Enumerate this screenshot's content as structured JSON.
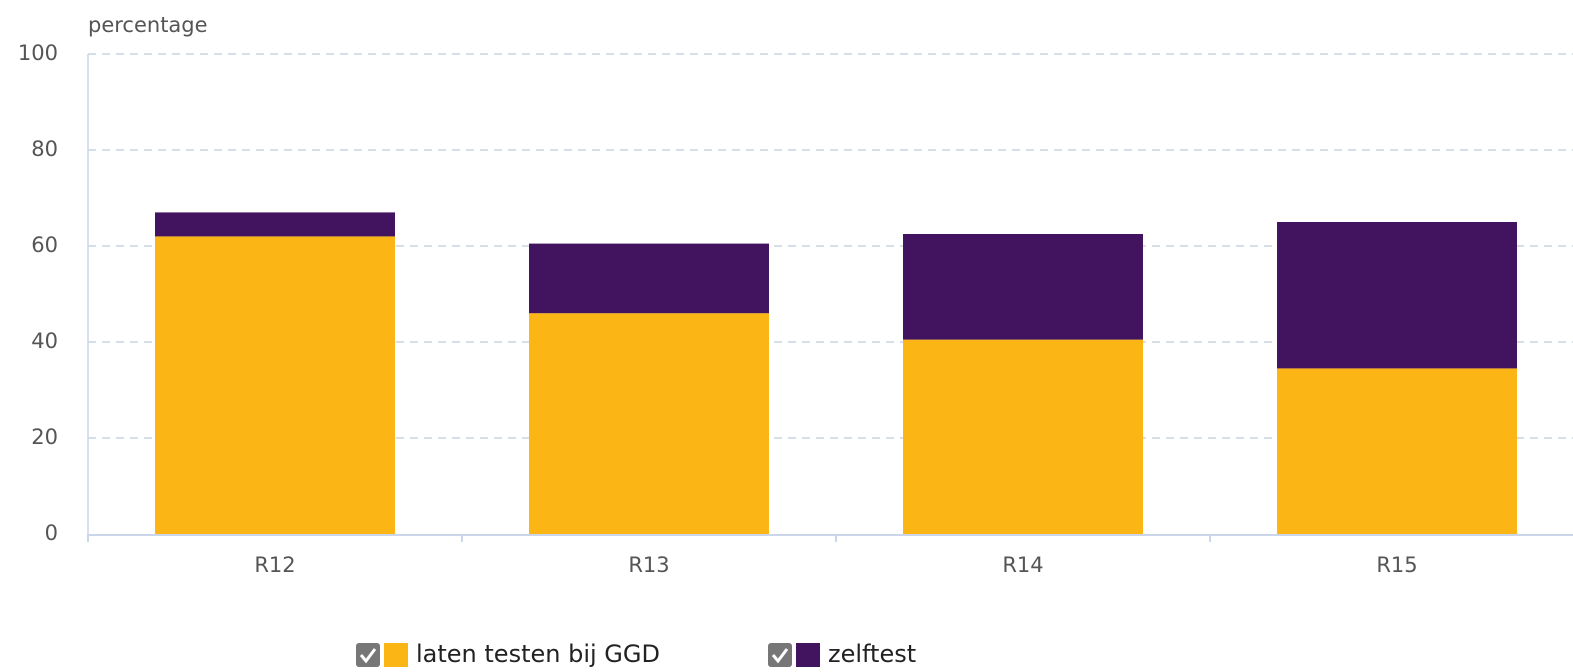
{
  "chart_data": {
    "type": "bar",
    "stacked": true,
    "y_label": "percentage",
    "categories": [
      "R12",
      "R13",
      "R14",
      "R15"
    ],
    "series": [
      {
        "name": "laten testen bij GGD",
        "color": "#fbb515",
        "values": [
          62,
          46,
          40.5,
          34.5
        ]
      },
      {
        "name": "zelftest",
        "color": "#42145f",
        "values": [
          5,
          14.5,
          22,
          30.5
        ]
      }
    ],
    "ylim": [
      0,
      100
    ],
    "yticks": [
      0,
      20,
      40,
      60,
      80,
      100
    ],
    "grid": true
  }
}
